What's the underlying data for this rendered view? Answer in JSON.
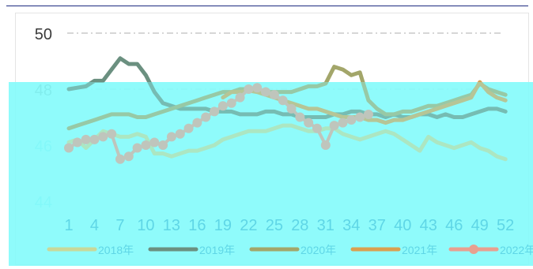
{
  "chart_data": {
    "type": "line",
    "title": "",
    "xlabel": "",
    "ylabel": "",
    "ylim": [
      44,
      50
    ],
    "xlim": [
      1,
      53
    ],
    "y_ticks": [
      "50",
      "48",
      "46",
      "44"
    ],
    "x_ticks": [
      "1",
      "4",
      "7",
      "10",
      "13",
      "16",
      "19",
      "22",
      "25",
      "28",
      "31",
      "34",
      "37",
      "40",
      "43",
      "46",
      "49",
      "52"
    ],
    "grid": "horizontal dash-dot",
    "legend_position": "bottom",
    "legend": [
      "2018年",
      "2019年",
      "2020年",
      "2021年",
      "2022年"
    ],
    "series": [
      {
        "name": "2018年",
        "color": "#c8d89a",
        "weeks": [
          1,
          2,
          3,
          4,
          5,
          6,
          7,
          8,
          9,
          10,
          11,
          12,
          13,
          14,
          15,
          16,
          17,
          18,
          19,
          20,
          21,
          22,
          23,
          24,
          25,
          26,
          27,
          28,
          29,
          30,
          31,
          32,
          33,
          34,
          35,
          36,
          37,
          38,
          39,
          40,
          41,
          42,
          43,
          44,
          45,
          46,
          47,
          48,
          49,
          50,
          51,
          52
        ],
        "values": [
          46.1,
          46.2,
          45.9,
          46.2,
          46.5,
          46.4,
          46.3,
          46.3,
          46.4,
          46.3,
          45.7,
          45.7,
          45.6,
          45.7,
          45.8,
          45.8,
          45.9,
          46.0,
          46.2,
          46.3,
          46.4,
          46.5,
          46.5,
          46.5,
          46.6,
          46.7,
          46.7,
          46.6,
          46.5,
          46.5,
          46.6,
          46.6,
          46.4,
          46.3,
          46.2,
          46.3,
          46.4,
          46.5,
          46.4,
          46.2,
          46.0,
          45.8,
          46.3,
          46.1,
          46.0,
          45.9,
          46.0,
          46.1,
          45.9,
          45.8,
          45.6,
          45.5
        ]
      },
      {
        "name": "2019年",
        "color": "#6b9080",
        "weeks": [
          1,
          2,
          3,
          4,
          5,
          6,
          7,
          8,
          9,
          10,
          11,
          12,
          13,
          14,
          15,
          16,
          17,
          18,
          19,
          20,
          21,
          22,
          23,
          24,
          25,
          26,
          27,
          28,
          29,
          30,
          31,
          32,
          33,
          34,
          35,
          36,
          37,
          38,
          39,
          40,
          41,
          42,
          43,
          44,
          45,
          46,
          47,
          48,
          49,
          50,
          51,
          52
        ],
        "values": [
          48.0,
          48.05,
          48.1,
          48.3,
          48.3,
          48.7,
          49.1,
          48.9,
          48.9,
          48.5,
          47.9,
          47.5,
          47.4,
          47.3,
          47.3,
          47.3,
          47.3,
          47.2,
          47.2,
          47.2,
          47.1,
          47.1,
          47.1,
          47.2,
          47.2,
          47.1,
          47.1,
          47.0,
          47.0,
          47.0,
          47.0,
          47.1,
          47.1,
          47.2,
          47.2,
          47.1,
          47.1,
          47.0,
          47.1,
          47.0,
          47.0,
          47.1,
          47.1,
          47.0,
          47.1,
          47.0,
          47.0,
          47.1,
          47.2,
          47.3,
          47.3,
          47.2
        ]
      },
      {
        "name": "2020年",
        "color": "#a3a66a",
        "weeks": [
          1,
          2,
          3,
          4,
          5,
          6,
          7,
          8,
          9,
          10,
          11,
          12,
          13,
          14,
          15,
          16,
          17,
          18,
          19,
          20,
          21,
          22,
          23,
          24,
          25,
          26,
          27,
          28,
          29,
          30,
          31,
          32,
          33,
          34,
          35,
          36,
          37,
          38,
          39,
          40,
          41,
          42,
          43,
          44,
          45,
          46,
          47,
          48,
          49,
          50,
          51,
          52
        ],
        "values": [
          46.6,
          46.7,
          46.8,
          46.9,
          47.0,
          47.1,
          47.1,
          47.1,
          47.0,
          47.0,
          47.1,
          47.2,
          47.3,
          47.4,
          47.5,
          47.6,
          47.7,
          47.8,
          47.9,
          47.9,
          48.0,
          48.0,
          48.0,
          47.9,
          47.9,
          47.9,
          47.9,
          48.0,
          48.1,
          48.1,
          48.2,
          48.8,
          48.7,
          48.5,
          48.6,
          47.6,
          47.3,
          47.1,
          47.1,
          47.2,
          47.2,
          47.3,
          47.4,
          47.4,
          47.5,
          47.6,
          47.7,
          47.8,
          48.2,
          48.0,
          47.9,
          47.8
        ]
      },
      {
        "name": "2021年",
        "color": "#d9a050",
        "weeks": [
          19,
          20,
          21,
          22,
          23,
          24,
          25,
          26,
          27,
          28,
          29,
          30,
          31,
          32,
          33,
          34,
          35,
          36,
          37,
          38,
          39,
          40,
          41,
          42,
          43,
          44,
          45,
          46,
          47,
          48,
          49,
          50,
          51,
          52
        ],
        "values": [
          47.7,
          47.9,
          47.9,
          47.95,
          47.9,
          47.8,
          47.7,
          47.6,
          47.5,
          47.4,
          47.3,
          47.3,
          47.2,
          47.1,
          47.0,
          47.0,
          47.0,
          46.9,
          46.9,
          46.8,
          46.9,
          46.9,
          47.0,
          47.1,
          47.2,
          47.3,
          47.4,
          47.5,
          47.6,
          47.7,
          48.25,
          47.9,
          47.7,
          47.6
        ]
      },
      {
        "name": "2022年",
        "color": "#e8a090",
        "weeks": [
          1,
          2,
          3,
          4,
          5,
          6,
          7,
          8,
          9,
          10,
          11,
          12,
          13,
          14,
          15,
          16,
          17,
          18,
          19,
          20,
          21,
          22,
          23,
          24,
          25,
          26,
          27,
          28,
          29,
          30,
          31,
          32,
          33,
          34,
          35,
          36
        ],
        "values": [
          45.9,
          46.1,
          46.2,
          46.2,
          46.3,
          46.4,
          45.5,
          45.6,
          45.9,
          46.0,
          46.1,
          46.0,
          46.3,
          46.4,
          46.6,
          46.8,
          47.0,
          47.2,
          47.4,
          47.5,
          47.7,
          48.0,
          48.05,
          47.9,
          47.8,
          47.6,
          47.3,
          47.0,
          46.8,
          46.6,
          46.0,
          46.7,
          46.8,
          46.9,
          47.0,
          47.1
        ]
      }
    ]
  }
}
